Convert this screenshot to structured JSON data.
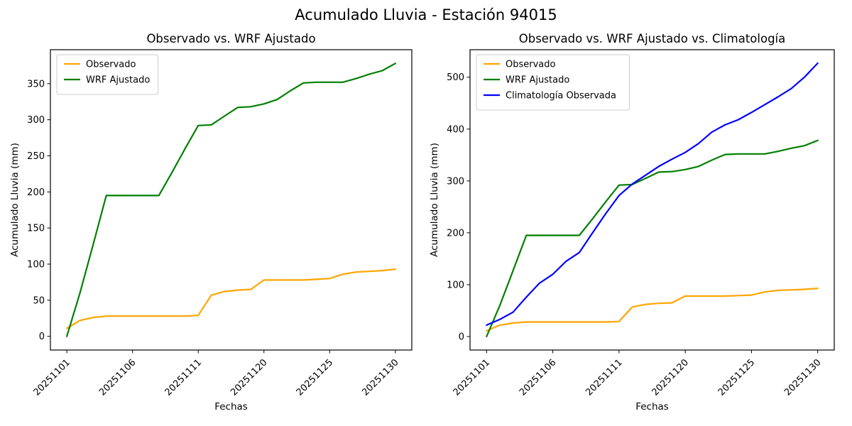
{
  "figure": {
    "suptitle": "Acumulado Lluvia - Estación 94015"
  },
  "colors": {
    "observado": "#ffa500",
    "wrf_ajustado": "#008000",
    "climatologia": "#0000ff",
    "axes": "#000000",
    "legend_edge": "#cccccc",
    "background": "#ffffff"
  },
  "chart_data": [
    {
      "type": "line",
      "title": "Observado vs. WRF Ajustado",
      "xlabel": "Fechas",
      "ylabel": "Acumulado Lluvia (mm)",
      "grid": false,
      "x": [
        "20251101",
        "20251102",
        "20251103",
        "20251104",
        "20251105",
        "20251106",
        "20251107",
        "20251108",
        "20251109",
        "20251110",
        "20251111",
        "20251116",
        "20251117",
        "20251118",
        "20251119",
        "20251120",
        "20251121",
        "20251122",
        "20251123",
        "20251124",
        "20251125",
        "20251126",
        "20251127",
        "20251128",
        "20251129",
        "20251130"
      ],
      "xtick_indices": [
        0,
        5,
        10,
        15,
        20,
        25
      ],
      "xtick_labels": [
        "20251101",
        "20251106",
        "20251111",
        "20251120",
        "20251125",
        "20251130"
      ],
      "yticks": [
        0,
        50,
        100,
        150,
        200,
        250,
        300,
        350
      ],
      "ylim": [
        -19,
        397
      ],
      "legend": {
        "position": "upper left",
        "entries": [
          "Observado",
          "WRF Ajustado"
        ]
      },
      "series": [
        {
          "name": "Observado",
          "color": "#ffa500",
          "values": [
            11,
            22,
            26,
            28,
            28,
            28,
            28,
            28,
            28,
            28,
            29,
            57,
            62,
            64,
            65,
            78,
            78,
            78,
            78,
            79,
            80,
            86,
            89,
            90,
            91,
            93
          ]
        },
        {
          "name": "WRF Ajustado",
          "color": "#008000",
          "values": [
            0,
            60,
            127,
            195,
            195,
            195,
            195,
            195,
            227,
            260,
            292,
            293,
            305,
            317,
            318,
            322,
            328,
            340,
            351,
            352,
            352,
            352,
            357,
            363,
            368,
            378
          ]
        }
      ]
    },
    {
      "type": "line",
      "title": "Observado vs. WRF Ajustado vs. Climatología",
      "xlabel": "Fechas",
      "ylabel": "Acumulado Lluvia (mm)",
      "grid": false,
      "x": [
        "20251101",
        "20251102",
        "20251103",
        "20251104",
        "20251105",
        "20251106",
        "20251107",
        "20251108",
        "20251109",
        "20251110",
        "20251111",
        "20251116",
        "20251117",
        "20251118",
        "20251119",
        "20251120",
        "20251121",
        "20251122",
        "20251123",
        "20251124",
        "20251125",
        "20251126",
        "20251127",
        "20251128",
        "20251129",
        "20251130"
      ],
      "xtick_indices": [
        0,
        5,
        10,
        15,
        20,
        25
      ],
      "xtick_labels": [
        "20251101",
        "20251106",
        "20251111",
        "20251120",
        "20251125",
        "20251130"
      ],
      "yticks": [
        0,
        100,
        200,
        300,
        400,
        500
      ],
      "ylim": [
        -26,
        553
      ],
      "legend": {
        "position": "upper left",
        "entries": [
          "Observado",
          "WRF Ajustado",
          "Climatología Observada"
        ]
      },
      "series": [
        {
          "name": "Observado",
          "color": "#ffa500",
          "values": [
            11,
            22,
            26,
            28,
            28,
            28,
            28,
            28,
            28,
            28,
            29,
            57,
            62,
            64,
            65,
            78,
            78,
            78,
            78,
            79,
            80,
            86,
            89,
            90,
            91,
            93
          ]
        },
        {
          "name": "WRF Ajustado",
          "color": "#008000",
          "values": [
            0,
            60,
            127,
            195,
            195,
            195,
            195,
            195,
            227,
            260,
            292,
            293,
            305,
            317,
            318,
            322,
            328,
            340,
            351,
            352,
            352,
            352,
            357,
            363,
            368,
            378
          ]
        },
        {
          "name": "Climatología Observada",
          "color": "#0000ff",
          "values": [
            22,
            33,
            47,
            76,
            103,
            120,
            145,
            162,
            200,
            237,
            272,
            294,
            311,
            328,
            342,
            355,
            372,
            394,
            408,
            418,
            432,
            447,
            462,
            478,
            500,
            527
          ]
        }
      ]
    }
  ]
}
